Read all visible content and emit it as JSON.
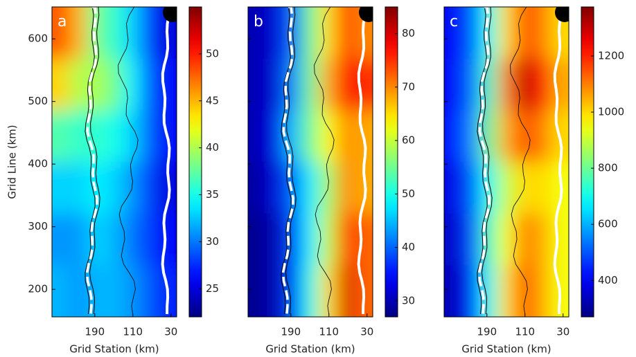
{
  "chart_data": [
    {
      "type": "heatmap",
      "label": "a",
      "xlabel": "Grid Station (km)",
      "ylabel": "Grid Line (km)",
      "xlim": [
        280,
        18
      ],
      "xticks": [
        190,
        110,
        30
      ],
      "ylim": [
        156,
        651
      ],
      "yticks": [
        200,
        300,
        400,
        500,
        600
      ],
      "clim": [
        22,
        55
      ],
      "cticks": [
        25,
        30,
        35,
        40,
        45,
        50
      ],
      "values": [
        [
          48,
          45,
          38,
          36,
          33,
          28,
          25
        ],
        [
          44,
          40,
          40,
          38,
          34,
          29,
          26
        ],
        [
          37,
          36,
          36,
          35,
          33,
          29,
          26
        ],
        [
          33,
          33,
          34,
          33,
          31,
          28,
          25
        ],
        [
          31,
          31,
          33,
          32,
          30,
          28,
          26
        ],
        [
          32,
          31,
          32,
          32,
          31,
          29,
          27
        ]
      ]
    },
    {
      "type": "heatmap",
      "label": "b",
      "xlabel": "Grid Station (km)",
      "xlim": [
        280,
        18
      ],
      "xticks": [
        190,
        110,
        30
      ],
      "ylim": [
        156,
        651
      ],
      "yticks": [
        200,
        300,
        400,
        500,
        600
      ],
      "clim": [
        27,
        85
      ],
      "cticks": [
        30,
        40,
        50,
        60,
        70,
        80
      ],
      "values": [
        [
          30,
          32,
          40,
          55,
          65,
          75,
          70
        ],
        [
          30,
          32,
          42,
          55,
          68,
          78,
          75
        ],
        [
          30,
          33,
          45,
          55,
          63,
          70,
          68
        ],
        [
          29,
          32,
          40,
          48,
          58,
          70,
          68
        ],
        [
          28,
          30,
          38,
          48,
          60,
          75,
          72
        ],
        [
          28,
          30,
          38,
          50,
          65,
          80,
          72
        ]
      ]
    },
    {
      "type": "heatmap",
      "label": "c",
      "xlabel": "Grid Station (km)",
      "xlim": [
        280,
        18
      ],
      "xticks": [
        190,
        110,
        30
      ],
      "ylim": [
        156,
        651
      ],
      "yticks": [
        200,
        300,
        400,
        500,
        600
      ],
      "clim": [
        270,
        1375
      ],
      "cticks": [
        400,
        600,
        800,
        1000,
        1200
      ],
      "values": [
        [
          400,
          500,
          700,
          1000,
          1150,
          1100,
          1000
        ],
        [
          400,
          520,
          750,
          1100,
          1300,
          1200,
          1050
        ],
        [
          420,
          550,
          800,
          1050,
          1150,
          1100,
          1000
        ],
        [
          380,
          500,
          700,
          900,
          1000,
          1000,
          950
        ],
        [
          350,
          480,
          750,
          950,
          1100,
          1050,
          950
        ],
        [
          330,
          450,
          700,
          1000,
          1150,
          1050,
          950
        ]
      ]
    }
  ]
}
